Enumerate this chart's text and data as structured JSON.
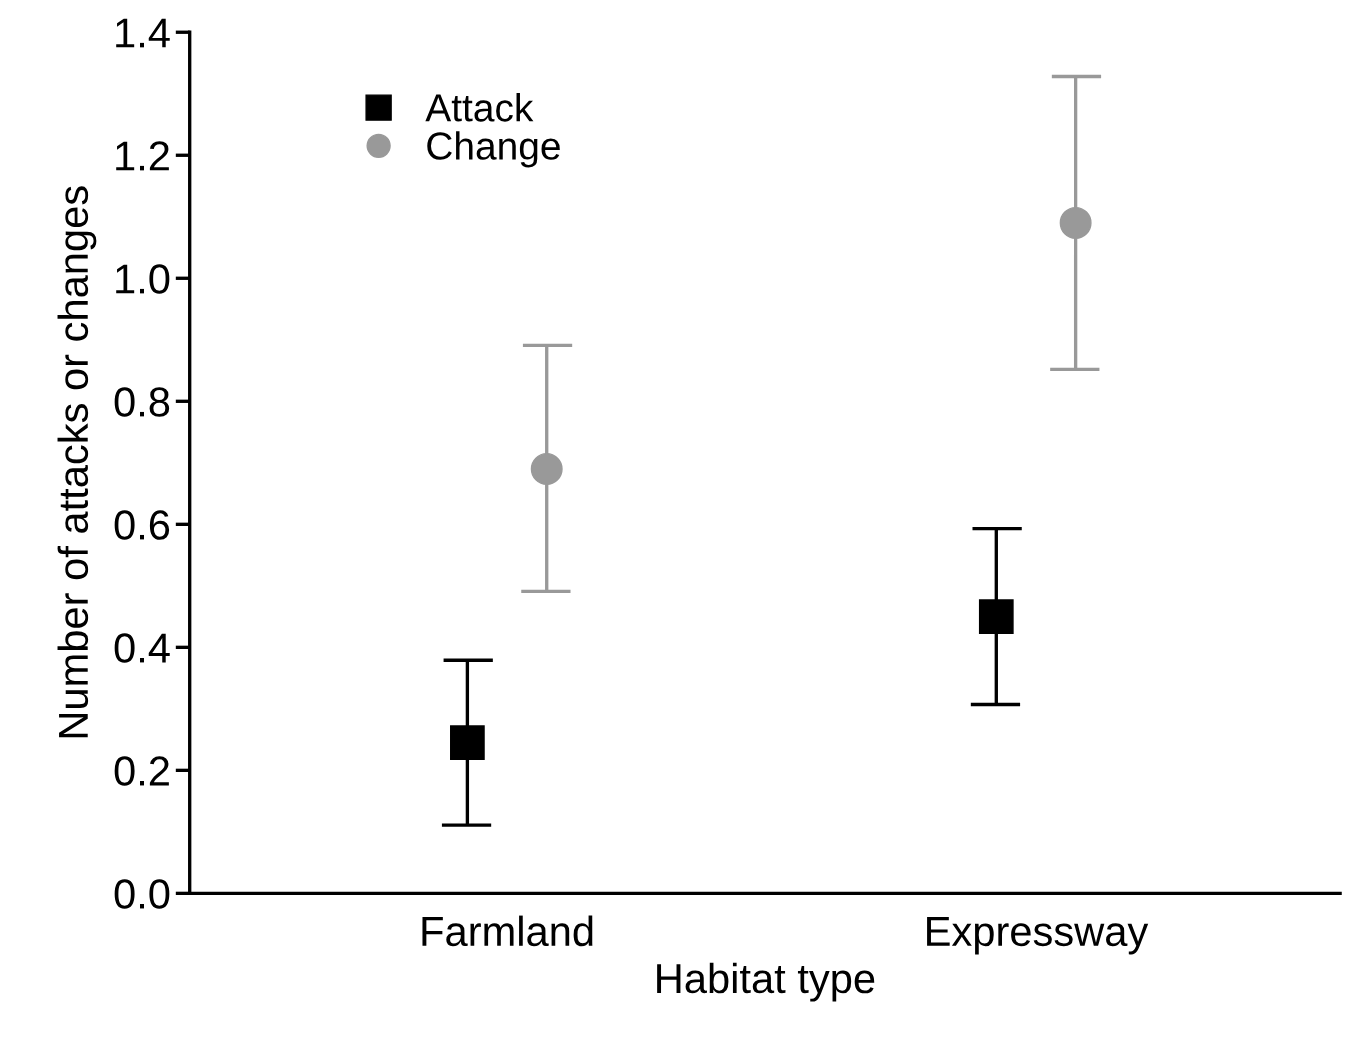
{
  "chart_data": {
    "type": "scatter",
    "xlabel": "Habitat type",
    "ylabel": "Number of attacks or changes",
    "categories": [
      "Farmland",
      "Expressway"
    ],
    "series": [
      {
        "name": "Attack",
        "color": "#000000",
        "marker": "square",
        "values": [
          0.245,
          0.45
        ],
        "errors": [
          [
            0.111,
            0.379
          ],
          [
            0.307,
            0.593
          ]
        ]
      },
      {
        "name": "Change",
        "color": "#999999",
        "marker": "circle",
        "values": [
          0.69,
          1.09
        ],
        "errors": [
          [
            0.491,
            0.891
          ],
          [
            0.852,
            1.328
          ]
        ]
      }
    ],
    "ylim": [
      0,
      1.4
    ],
    "yticks": [
      {
        "value": 0,
        "label": "0.0"
      },
      0.2,
      0.4,
      0.6,
      0.8,
      {
        "value": 1.0,
        "label": "1.0"
      },
      1.2,
      1.4
    ],
    "grid": false,
    "legend": "top left"
  }
}
